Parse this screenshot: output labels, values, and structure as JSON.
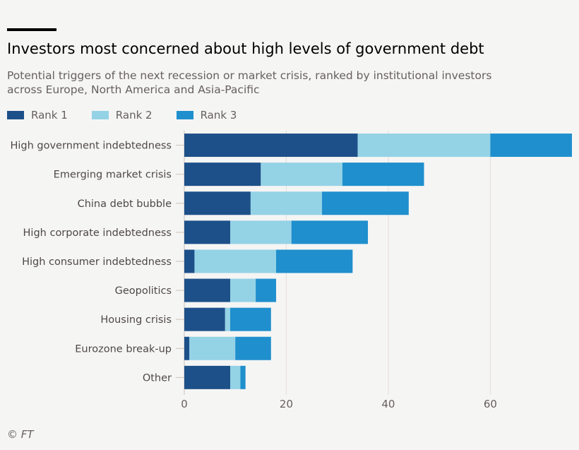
{
  "title": "Investors most concerned about high levels of government debt",
  "subtitle": "Potential triggers of the next recession or market crisis, ranked by institutional investors across Europe, North America and Asia-Pacific",
  "source": "© FT",
  "chart_data": {
    "type": "bar",
    "orientation": "horizontal",
    "stacked": true,
    "categories": [
      "High government indebtedness",
      "Emerging market crisis",
      "China debt bubble",
      "High corporate indebtedness",
      "High consumer indebtedness",
      "Geopolitics",
      "Housing crisis",
      "Eurozone break-up",
      "Other"
    ],
    "series": [
      {
        "name": "Rank 1",
        "color": "#1d5089",
        "values": [
          34,
          15,
          13,
          9,
          2,
          9,
          8,
          1,
          9
        ]
      },
      {
        "name": "Rank 2",
        "color": "#94d2e6",
        "values": [
          26,
          16,
          14,
          12,
          16,
          5,
          1,
          9,
          2
        ]
      },
      {
        "name": "Rank 3",
        "color": "#1f8fcd",
        "values": [
          16,
          16,
          17,
          15,
          15,
          4,
          8,
          7,
          1
        ]
      }
    ],
    "xlim": [
      0,
      76
    ],
    "xticks": [
      "0",
      "20",
      "40",
      "60"
    ],
    "grid": true,
    "legend": "top-left"
  }
}
